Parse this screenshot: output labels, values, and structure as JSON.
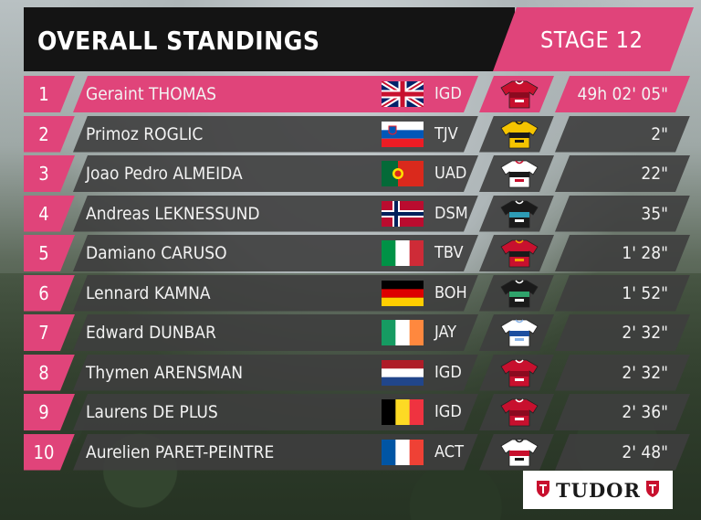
{
  "header": {
    "title": "OVERALL STANDINGS",
    "stage": "STAGE 12"
  },
  "sponsor": {
    "name": "TUDOR"
  },
  "colors": {
    "accent": "#e0447a",
    "panel": "#3e3e3e",
    "header_bg": "#141414"
  },
  "standings": [
    {
      "rank": "1",
      "name": "Geraint THOMAS",
      "flag": "gb-flag-icon",
      "team": "IGD",
      "jersey": "ineos-jersey-icon",
      "time": "49h 02' 05\""
    },
    {
      "rank": "2",
      "name": "Primoz ROGLIC",
      "flag": "si-flag-icon",
      "team": "TJV",
      "jersey": "jumbo-jersey-icon",
      "time": "2\""
    },
    {
      "rank": "3",
      "name": "Joao Pedro ALMEIDA",
      "flag": "pt-flag-icon",
      "team": "UAD",
      "jersey": "uae-jersey-icon",
      "time": "22\""
    },
    {
      "rank": "4",
      "name": "Andreas LEKNESSUND",
      "flag": "no-flag-icon",
      "team": "DSM",
      "jersey": "dsm-jersey-icon",
      "time": "35\""
    },
    {
      "rank": "5",
      "name": "Damiano CARUSO",
      "flag": "it-flag-icon",
      "team": "TBV",
      "jersey": "bahrain-jersey-icon",
      "time": "1' 28\""
    },
    {
      "rank": "6",
      "name": "Lennard KAMNA",
      "flag": "de-flag-icon",
      "team": "BOH",
      "jersey": "bora-jersey-icon",
      "time": "1' 52\""
    },
    {
      "rank": "7",
      "name": "Edward DUNBAR",
      "flag": "ie-flag-icon",
      "team": "JAY",
      "jersey": "jayco-jersey-icon",
      "time": "2' 32\""
    },
    {
      "rank": "8",
      "name": "Thymen ARENSMAN",
      "flag": "nl-flag-icon",
      "team": "IGD",
      "jersey": "ineos-jersey-icon",
      "time": "2' 32\""
    },
    {
      "rank": "9",
      "name": "Laurens DE PLUS",
      "flag": "be-flag-icon",
      "team": "IGD",
      "jersey": "ineos-jersey-icon",
      "time": "2' 36\""
    },
    {
      "rank": "10",
      "name": "Aurelien PARET-PEINTRE",
      "flag": "fr-flag-icon",
      "team": "ACT",
      "jersey": "ag2r-jersey-icon",
      "time": "2' 48\""
    }
  ]
}
